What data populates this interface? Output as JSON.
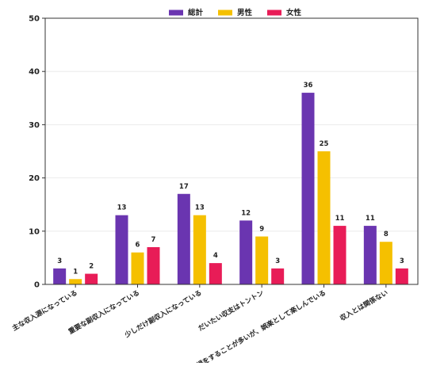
{
  "chart_data": {
    "type": "bar",
    "title": "",
    "xlabel": "",
    "ylabel": "",
    "ylim": [
      0,
      50
    ],
    "yticks": [
      0,
      10,
      20,
      30,
      40,
      50
    ],
    "grid": "horizontal",
    "legend_position": "top-center",
    "categories": [
      "主な収入源になっている",
      "重要な副収入になっている",
      "少しだけ副収入になっている",
      "だいたい収支はトントン",
      "損をすることが多いが、娯楽として楽しんでいる",
      "収入とは関係ない"
    ],
    "series": [
      {
        "name": "総計",
        "color": "#6a35b0",
        "values": [
          3,
          13,
          17,
          12,
          36,
          11
        ]
      },
      {
        "name": "男性",
        "color": "#f5c000",
        "values": [
          1,
          6,
          13,
          9,
          25,
          8
        ]
      },
      {
        "name": "女性",
        "color": "#e81c57",
        "values": [
          2,
          7,
          4,
          3,
          11,
          3
        ]
      }
    ]
  }
}
